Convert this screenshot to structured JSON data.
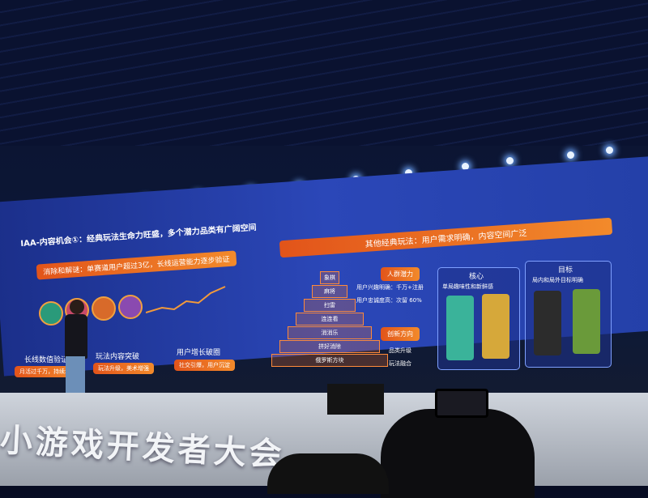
{
  "slide": {
    "left": {
      "title": "IAA-内容机会①：经典玩法生命力旺盛，多个潜力品类有广阔空间",
      "banner": "消除和解谜：单赛道用户超过3亿，长线运营能力逐步验证",
      "pillars": [
        {
          "label": "长线数值验证",
          "note": "月活过千万，持续增长"
        },
        {
          "label": "玩法内容突破",
          "note": "玩法升级，美术增强"
        },
        {
          "label": "用户增长破圈",
          "note": "社交引爆，用户沉淀"
        }
      ]
    },
    "right": {
      "banner": "其他经典玩法：用户需求明确，内容空间广泛",
      "pyramid": [
        "象棋",
        "麻将",
        "扫雷",
        "连连看",
        "消消乐",
        "拼好消除",
        "俄罗斯方块"
      ],
      "potential": {
        "title": "人群潜力",
        "lines": [
          "用户兴趣明确：千万+注册",
          "用户忠诚度高：次留 60%"
        ]
      },
      "innovation": {
        "title": "创新方向",
        "lines": [
          "品类升级",
          "玩法融合"
        ]
      },
      "core": {
        "title": "核心",
        "subtitle": "单局趣味性和新鲜感"
      },
      "goal": {
        "title": "目标",
        "subtitle": "局内和局外目标明确"
      }
    }
  },
  "stage": {
    "banner": "小游戏开发者大会"
  }
}
